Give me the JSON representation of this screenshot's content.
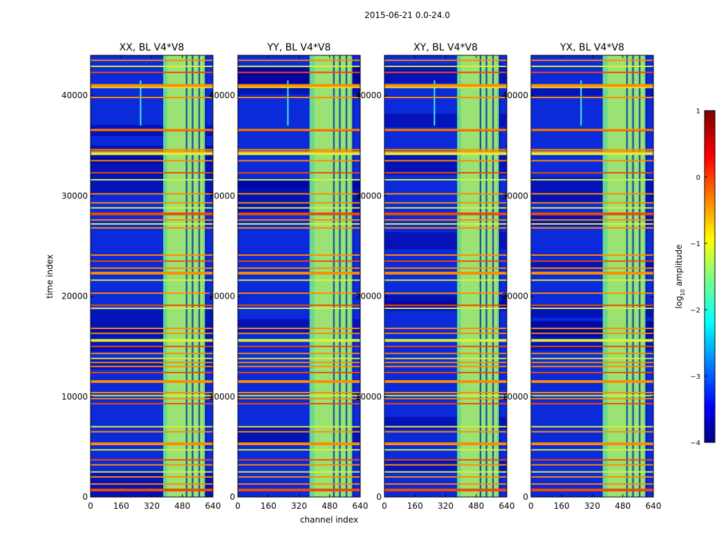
{
  "chart_data": {
    "type": "heatmap",
    "suptitle": "2015-06-21 0.0-24.0",
    "xlabel": "channel index",
    "ylabel": "time index",
    "xlim": [
      0,
      640
    ],
    "ylim": [
      0,
      44000
    ],
    "xticks": [
      0,
      160,
      320,
      480,
      640
    ],
    "yticks": [
      0,
      10000,
      20000,
      30000,
      40000
    ],
    "xtick_labels": [
      "0",
      "160",
      "320",
      "480",
      "640"
    ],
    "ytick_labels": [
      "0",
      "10000",
      "20000",
      "30000",
      "40000"
    ],
    "panels": [
      {
        "title": "XX, BL V4*V8",
        "ytick_labels_overlap": [
          "0",
          "10000",
          "20000",
          "30000",
          "40000"
        ]
      },
      {
        "title": "YY, BL V4*V8",
        "ytick_labels_overlap": [
          "0",
          "10000",
          "20000",
          "30000",
          "40000"
        ]
      },
      {
        "title": "XY, BL V4*V8",
        "ytick_labels_overlap": [
          "0",
          "10000",
          "20000",
          "30000",
          "40000"
        ]
      },
      {
        "title": "YX, BL V4*V8",
        "ytick_labels_overlap": [
          "0",
          "10000",
          "20000",
          "30000",
          "40000"
        ]
      }
    ],
    "colorbar": {
      "label": "log10 amplitude",
      "label_text": "log",
      "label_sub": "10",
      "label_rest": " amplitude",
      "range": [
        -4,
        1
      ],
      "ticks": [
        1,
        0,
        -1,
        -2,
        -3,
        -4
      ],
      "tick_labels": [
        "1",
        "0",
        "−1",
        "−2",
        "−3",
        "−4"
      ],
      "colormap": "jet"
    },
    "rfi_band_channels": [
      [
        400,
        500
      ],
      [
        510,
        525
      ],
      [
        540,
        560
      ],
      [
        570,
        590
      ]
    ],
    "flagged_rows_time": [
      700,
      1300,
      2000,
      2500,
      3200,
      3700,
      4700,
      5300,
      6500,
      7000,
      9300,
      9800,
      10100,
      10400,
      11500,
      12400,
      13000,
      13400,
      13800,
      14300,
      15000,
      15600,
      16300,
      16800,
      18800,
      19100,
      20300,
      21600,
      22300,
      22800,
      23500,
      24100,
      26800,
      27200,
      27600,
      28200,
      28800,
      29300,
      30200,
      31600,
      32300,
      33500,
      34200,
      34400,
      34600,
      36500,
      36600,
      39800,
      40800,
      41000,
      42300,
      42900,
      43500
    ],
    "colors": {
      "low": "#00009a",
      "background": "#0b2ad9",
      "band": "#6fe88d",
      "hot": "#fff33b",
      "flag_orange": "#ff8a00",
      "flag_red": "#f24a00",
      "flag_yellow": "#d8f03a"
    }
  }
}
